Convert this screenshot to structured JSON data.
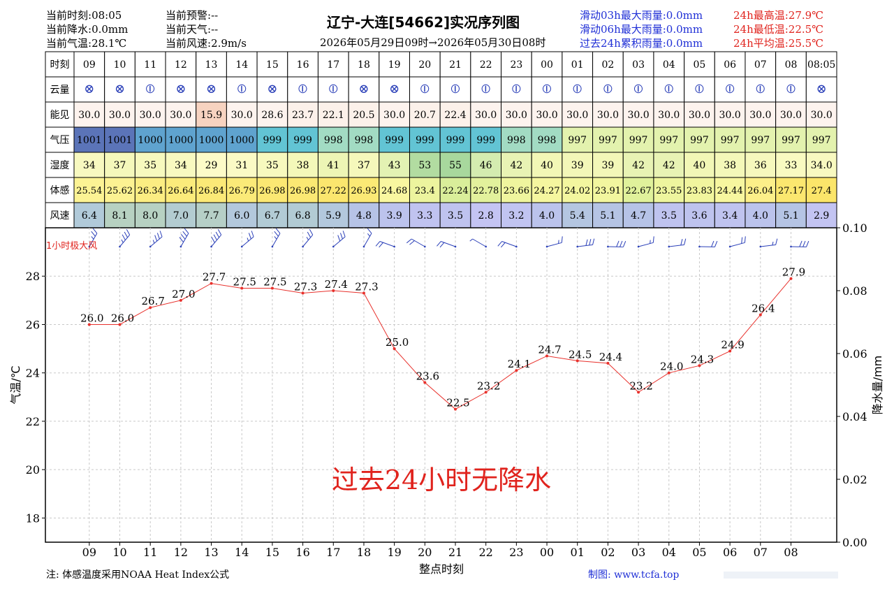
{
  "header": {
    "left": [
      {
        "label": "当前时刻:",
        "value": "08:05"
      },
      {
        "label": "当前降水:",
        "value": "0.0mm"
      },
      {
        "label": "当前气温:",
        "value": "28.1℃"
      }
    ],
    "mid": [
      {
        "label": "当前预警:",
        "value": "--"
      },
      {
        "label": "当前天气:",
        "value": "--"
      },
      {
        "label": "当前风速:",
        "value": "2.9m/s"
      }
    ],
    "title": "辽宁-大连[54662]实况序列图",
    "subtitle": "2026年05月29日09时→2026年05月30日08时",
    "right_blue": [
      "滑动03h最大雨量:0.0mm",
      "滑动06h最大雨量:0.0mm",
      "过去24h累积雨量:0.0mm"
    ],
    "right_red": [
      "24h最高温:27.9℃",
      "24h最低温:22.5℃",
      "24h平均温:25.5℃"
    ]
  },
  "colors": {
    "temp_line": "#e8312c",
    "wind_barb": "#2a3fb8",
    "no_rain_text": "#e0231d",
    "vis_low": "#f7d3c0",
    "vis_normal": "#fdf3ee"
  },
  "table": {
    "row_labels": [
      "时刻",
      "云量",
      "能见",
      "气压",
      "湿度",
      "体感",
      "风速"
    ],
    "times": [
      "09",
      "10",
      "11",
      "12",
      "13",
      "14",
      "15",
      "16",
      "17",
      "18",
      "19",
      "20",
      "21",
      "22",
      "23",
      "00",
      "01",
      "02",
      "03",
      "04",
      "05",
      "06",
      "07",
      "08",
      "08:05"
    ],
    "cloud": [
      "⊗",
      "⊗",
      "⦶",
      "⊗",
      "⊗",
      "⦶",
      "⊗",
      "⦶",
      "⦶",
      "⊗",
      "⊗",
      "⦶",
      "⦶",
      "⦶",
      "⦶",
      "⦶",
      "⦶",
      "⦶",
      "⦶",
      "⦶",
      "⦶",
      "⦶",
      "⦶",
      "⦶",
      "⊗"
    ],
    "visibility": [
      "30.0",
      "30.0",
      "30.0",
      "30.0",
      "15.9",
      "30.0",
      "28.6",
      "23.7",
      "22.1",
      "20.5",
      "30.0",
      "20.7",
      "22.4",
      "30.0",
      "30.0",
      "30.0",
      "30.0",
      "30.0",
      "30.0",
      "30.0",
      "30.0",
      "30.0",
      "30.0",
      "30.0",
      "30.0"
    ],
    "pressure": [
      "1001",
      "1001",
      "1000",
      "1000",
      "1000",
      "1000",
      "999",
      "999",
      "998",
      "998",
      "999",
      "999",
      "999",
      "999",
      "998",
      "998",
      "997",
      "997",
      "997",
      "997",
      "997",
      "997",
      "997",
      "997",
      "997"
    ],
    "humidity": [
      "34",
      "37",
      "35",
      "34",
      "29",
      "31",
      "35",
      "38",
      "41",
      "37",
      "43",
      "53",
      "55",
      "46",
      "42",
      "40",
      "39",
      "39",
      "42",
      "42",
      "40",
      "38",
      "36",
      "33",
      "34.0"
    ],
    "feels": [
      "25.54",
      "25.62",
      "26.34",
      "26.64",
      "26.84",
      "26.79",
      "26.98",
      "26.98",
      "27.22",
      "26.93",
      "24.68",
      "23.4",
      "22.24",
      "22.78",
      "23.66",
      "24.27",
      "24.02",
      "23.91",
      "22.67",
      "23.55",
      "23.83",
      "24.44",
      "26.04",
      "27.17",
      "27.4"
    ],
    "wind": [
      "6.4",
      "8.1",
      "8.0",
      "7.0",
      "7.7",
      "6.0",
      "6.7",
      "6.8",
      "5.9",
      "4.8",
      "3.9",
      "3.3",
      "3.5",
      "2.8",
      "3.2",
      "4.0",
      "5.4",
      "5.1",
      "4.7",
      "3.5",
      "3.6",
      "3.4",
      "4.0",
      "5.1",
      "2.9"
    ]
  },
  "chart_data": {
    "type": "line",
    "x": [
      "09",
      "10",
      "11",
      "12",
      "13",
      "14",
      "15",
      "16",
      "17",
      "18",
      "19",
      "20",
      "21",
      "22",
      "23",
      "00",
      "01",
      "02",
      "03",
      "04",
      "05",
      "06",
      "07",
      "08"
    ],
    "series": [
      {
        "values": [
          26.0,
          26.0,
          26.7,
          27.0,
          27.7,
          27.5,
          27.5,
          27.3,
          27.4,
          27.3,
          25.0,
          23.6,
          22.5,
          23.2,
          24.1,
          24.7,
          24.5,
          24.4,
          23.2,
          24.0,
          24.3,
          24.9,
          26.4,
          27.9
        ]
      }
    ],
    "ylabel": "气温/℃",
    "y2label": "降水量/mm",
    "xlabel": "整点时刻",
    "ylim": [
      17.0,
      30.0
    ],
    "y2lim": [
      0.0,
      0.1
    ],
    "yticks": [
      "18",
      "20",
      "22",
      "24",
      "26",
      "28"
    ],
    "y2ticks": [
      "0.00",
      "0.02",
      "0.04",
      "0.06",
      "0.08",
      "0.10"
    ],
    "grid": true,
    "wind_label": "1小时极大风",
    "no_rain_text": "过去24小时无降水"
  },
  "footer": {
    "note": "注: 体感温度采用NOAA Heat Index公式",
    "credit": "制图: www.tcfa.top"
  }
}
